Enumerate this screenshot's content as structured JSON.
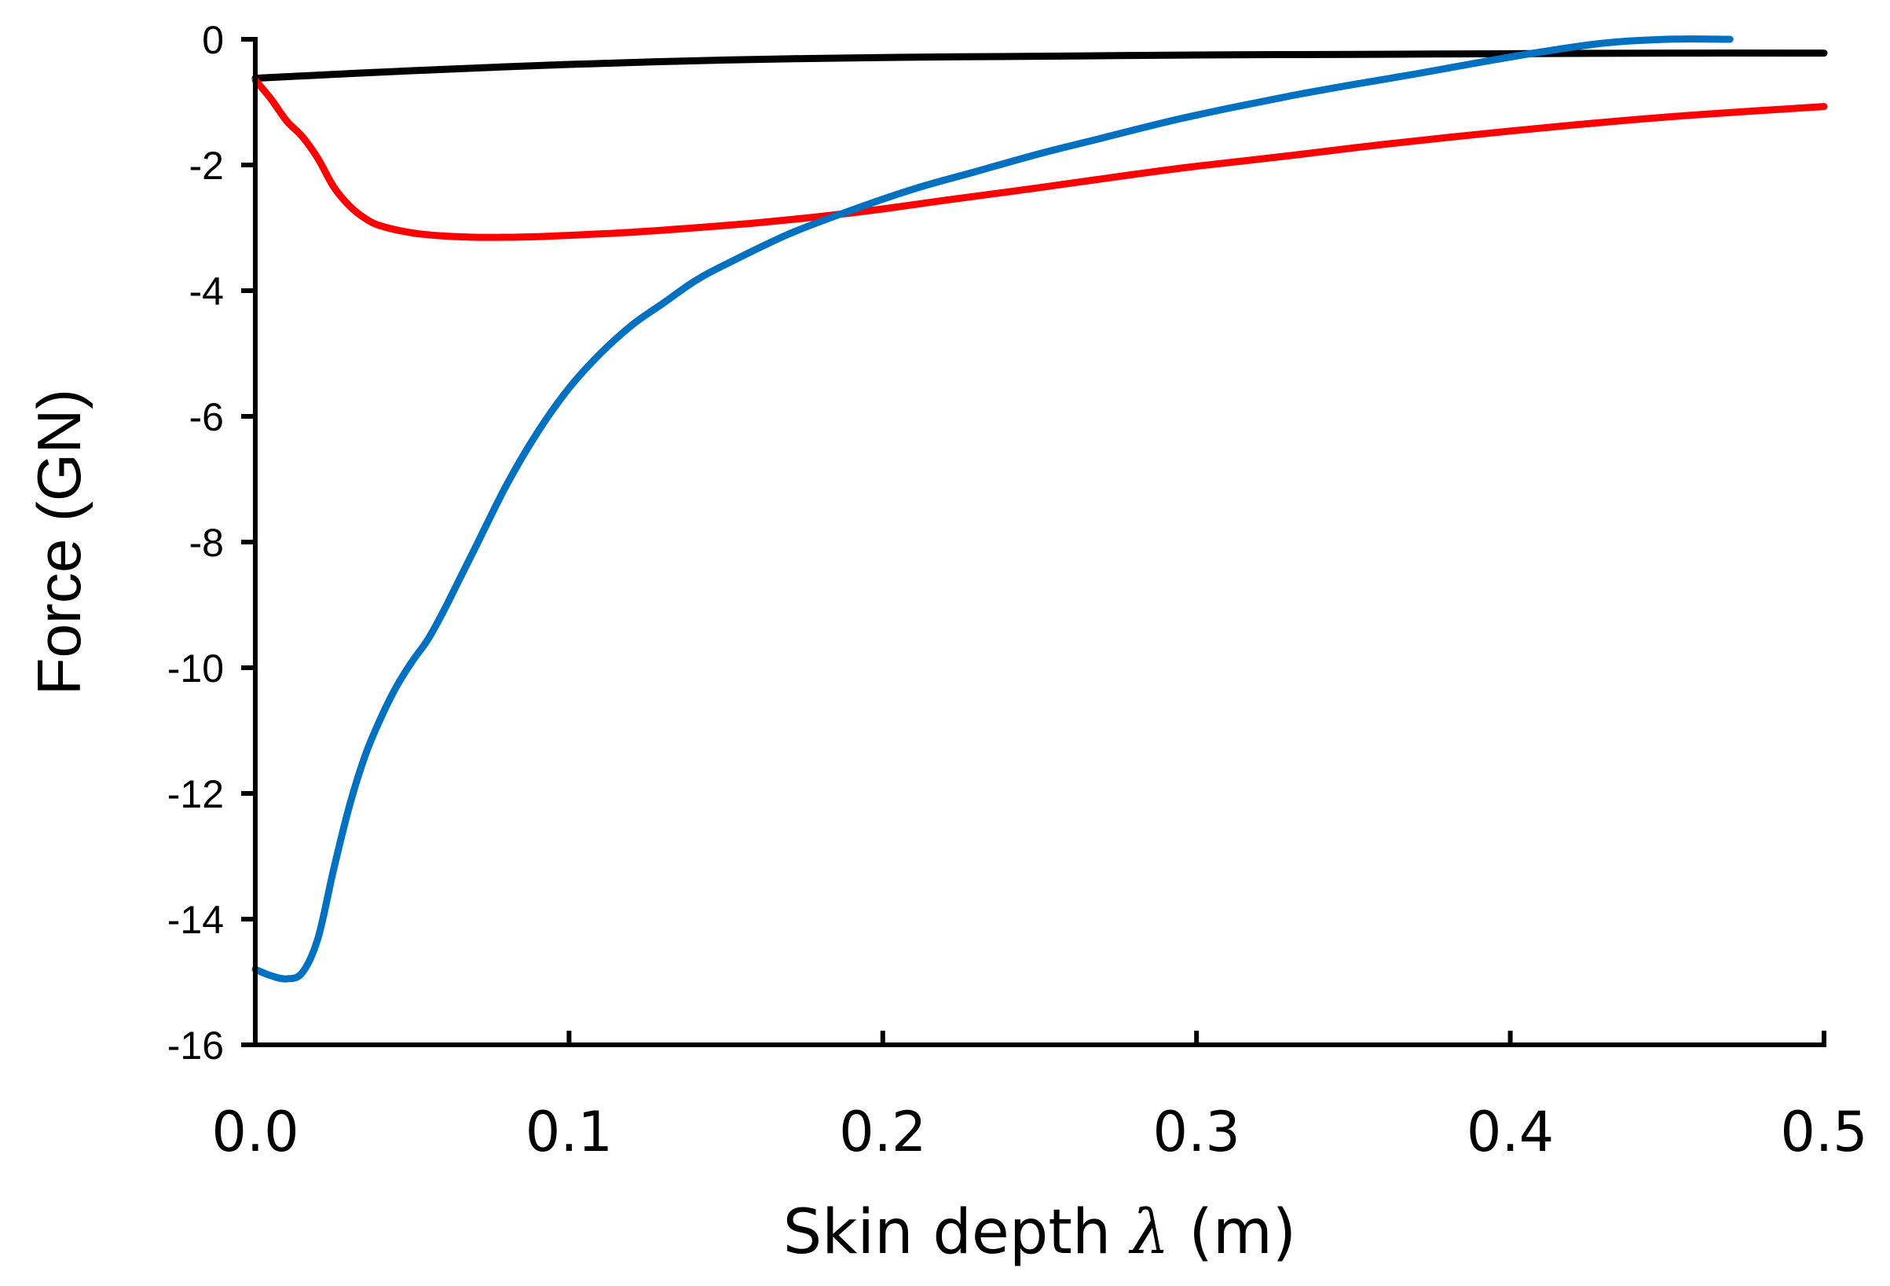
{
  "chart_data": {
    "type": "line",
    "title": "",
    "xlabel": "Skin depth λ (m)",
    "xlabel_parts": {
      "prefix": "Skin depth ",
      "symbol": "λ",
      "suffix": " (m)"
    },
    "ylabel": "Force (GN)",
    "xlim": [
      0,
      0.5
    ],
    "ylim": [
      -16,
      0
    ],
    "xticks": [
      0.0,
      0.1,
      0.2,
      0.3,
      0.4,
      0.5
    ],
    "xtick_labels": [
      "0.0",
      "0.1",
      "0.2",
      "0.3",
      "0.4",
      "0.5"
    ],
    "yticks": [
      0,
      -2,
      -4,
      -6,
      -8,
      -10,
      -12,
      -14,
      -16
    ],
    "ytick_labels": [
      "0",
      "-2",
      "-4",
      "-6",
      "-8",
      "-10",
      "-12",
      "-14",
      "-16"
    ],
    "grid": false,
    "legend": null,
    "series": [
      {
        "name": "black",
        "color": "#000000",
        "points": [
          [
            0.0,
            -0.62
          ],
          [
            0.05,
            -0.5
          ],
          [
            0.1,
            -0.4
          ],
          [
            0.15,
            -0.33
          ],
          [
            0.2,
            -0.29
          ],
          [
            0.25,
            -0.27
          ],
          [
            0.3,
            -0.25
          ],
          [
            0.35,
            -0.24
          ],
          [
            0.4,
            -0.23
          ],
          [
            0.45,
            -0.22
          ],
          [
            0.5,
            -0.22
          ]
        ]
      },
      {
        "name": "red",
        "color": "#ff0000",
        "points": [
          [
            0.0,
            -0.65
          ],
          [
            0.005,
            -0.95
          ],
          [
            0.01,
            -1.3
          ],
          [
            0.015,
            -1.55
          ],
          [
            0.02,
            -1.9
          ],
          [
            0.025,
            -2.35
          ],
          [
            0.03,
            -2.65
          ],
          [
            0.035,
            -2.85
          ],
          [
            0.04,
            -2.97
          ],
          [
            0.05,
            -3.08
          ],
          [
            0.06,
            -3.13
          ],
          [
            0.07,
            -3.15
          ],
          [
            0.08,
            -3.15
          ],
          [
            0.09,
            -3.14
          ],
          [
            0.1,
            -3.12
          ],
          [
            0.12,
            -3.07
          ],
          [
            0.14,
            -3.0
          ],
          [
            0.16,
            -2.92
          ],
          [
            0.18,
            -2.82
          ],
          [
            0.2,
            -2.7
          ],
          [
            0.22,
            -2.56
          ],
          [
            0.25,
            -2.36
          ],
          [
            0.28,
            -2.15
          ],
          [
            0.3,
            -2.02
          ],
          [
            0.33,
            -1.85
          ],
          [
            0.36,
            -1.67
          ],
          [
            0.4,
            -1.46
          ],
          [
            0.43,
            -1.32
          ],
          [
            0.46,
            -1.2
          ],
          [
            0.5,
            -1.07
          ]
        ]
      },
      {
        "name": "blue",
        "color": "#0070c0",
        "points": [
          [
            0.0,
            -14.8
          ],
          [
            0.005,
            -14.9
          ],
          [
            0.01,
            -14.95
          ],
          [
            0.015,
            -14.85
          ],
          [
            0.02,
            -14.3
          ],
          [
            0.025,
            -13.2
          ],
          [
            0.03,
            -12.2
          ],
          [
            0.035,
            -11.4
          ],
          [
            0.04,
            -10.8
          ],
          [
            0.045,
            -10.3
          ],
          [
            0.05,
            -9.9
          ],
          [
            0.055,
            -9.55
          ],
          [
            0.06,
            -9.1
          ],
          [
            0.065,
            -8.6
          ],
          [
            0.07,
            -8.1
          ],
          [
            0.08,
            -7.1
          ],
          [
            0.09,
            -6.25
          ],
          [
            0.1,
            -5.55
          ],
          [
            0.11,
            -5.0
          ],
          [
            0.12,
            -4.55
          ],
          [
            0.13,
            -4.2
          ],
          [
            0.14,
            -3.85
          ],
          [
            0.15,
            -3.58
          ],
          [
            0.17,
            -3.1
          ],
          [
            0.19,
            -2.72
          ],
          [
            0.21,
            -2.38
          ],
          [
            0.23,
            -2.1
          ],
          [
            0.25,
            -1.82
          ],
          [
            0.27,
            -1.57
          ],
          [
            0.29,
            -1.32
          ],
          [
            0.31,
            -1.1
          ],
          [
            0.33,
            -0.9
          ],
          [
            0.35,
            -0.72
          ],
          [
            0.37,
            -0.55
          ],
          [
            0.39,
            -0.37
          ],
          [
            0.41,
            -0.2
          ],
          [
            0.43,
            -0.06
          ],
          [
            0.45,
            0.0
          ],
          [
            0.47,
            0.0
          ]
        ]
      }
    ]
  }
}
